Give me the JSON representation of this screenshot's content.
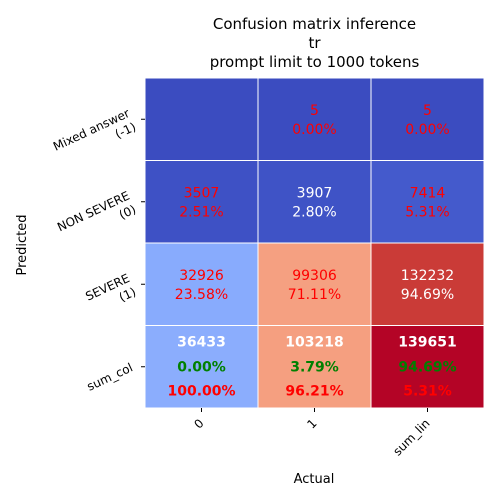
{
  "chart_data": {
    "type": "heatmap",
    "title": [
      "Confusion matrix inference",
      "tr",
      "prompt limit to 1000 tokens"
    ],
    "xlabel": "Actual",
    "ylabel": "Predicted",
    "x_categories": [
      "0",
      "1",
      "sum_lin"
    ],
    "y_categories": [
      [
        "Mixed answer",
        "(-1)"
      ],
      [
        "NON SEVERE",
        "(0)"
      ],
      [
        "SEVERE",
        "(1)"
      ],
      [
        "sum_col"
      ]
    ],
    "colormap": "coolwarm",
    "grid": false,
    "rows": [
      {
        "cells": [
          {
            "count": "",
            "pct": "",
            "color": "#3b4cc0",
            "text_color": "#ff0000"
          },
          {
            "count": "5",
            "pct": "0.00%",
            "color": "#3b4cc0",
            "text_color": "#ff0000"
          },
          {
            "count": "5",
            "pct": "0.00%",
            "color": "#3b4cc0",
            "text_color": "#ff0000"
          }
        ]
      },
      {
        "cells": [
          {
            "count": "3507",
            "pct": "2.51%",
            "color": "#3e51c5",
            "text_color": "#ff0000"
          },
          {
            "count": "3907",
            "pct": "2.80%",
            "color": "#3f53c6",
            "text_color": "#ffffff"
          },
          {
            "count": "7414",
            "pct": "5.31%",
            "color": "#445acc",
            "text_color": "#ff0000"
          }
        ]
      },
      {
        "cells": [
          {
            "count": "32926",
            "pct": "23.58%",
            "color": "#88abfd",
            "text_color": "#ff0000"
          },
          {
            "count": "99306",
            "pct": "71.11%",
            "color": "#f5a081",
            "text_color": "#ff0000"
          },
          {
            "count": "132232",
            "pct": "94.69%",
            "color": "#ca3b37",
            "text_color": "#ffffff"
          }
        ]
      },
      {
        "summary": true,
        "cells": [
          {
            "count": "36433",
            "pct_green": "0.00%",
            "pct_red": "100.00%",
            "color": "#8badfd"
          },
          {
            "count": "103218",
            "pct_green": "3.79%",
            "pct_red": "96.21%",
            "color": "#f59f80"
          },
          {
            "count": "139651",
            "pct_green": "94.69%",
            "pct_red": "5.31%",
            "color": "#b40426"
          }
        ]
      }
    ]
  }
}
